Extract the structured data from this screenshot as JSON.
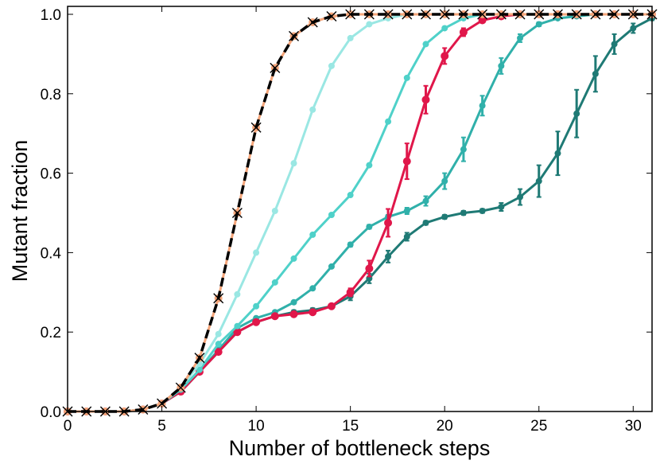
{
  "chart_data": {
    "type": "line",
    "title": "",
    "xlabel": "Number of bottleneck steps",
    "ylabel": "Mutant fraction",
    "xlim": [
      0,
      31
    ],
    "ylim": [
      0,
      1.02
    ],
    "xticks": [
      0,
      5,
      10,
      15,
      20,
      25,
      30
    ],
    "xtick_labels": [
      "0",
      "5",
      "10",
      "15",
      "20",
      "25",
      "30"
    ],
    "yticks": [
      0.0,
      0.2,
      0.4,
      0.6,
      0.8,
      1.0
    ],
    "ytick_labels": [
      "0.0",
      "0.2",
      "0.4",
      "0.6",
      "0.8",
      "1.0"
    ],
    "grid": false,
    "legend": "none",
    "series": [
      {
        "color": "#1f7a75",
        "style": "solid-line-with-dots-and-errorbars",
        "x": [
          0,
          1,
          2,
          3,
          4,
          5,
          6,
          7,
          8,
          9,
          10,
          11,
          12,
          13,
          14,
          15,
          16,
          17,
          18,
          19,
          20,
          21,
          22,
          23,
          24,
          25,
          26,
          27,
          28,
          29,
          30,
          31
        ],
        "y": [
          0,
          0,
          0,
          0,
          0.005,
          0.02,
          0.05,
          0.1,
          0.15,
          0.2,
          0.225,
          0.24,
          0.25,
          0.255,
          0.265,
          0.29,
          0.335,
          0.39,
          0.44,
          0.475,
          0.49,
          0.5,
          0.505,
          0.515,
          0.54,
          0.58,
          0.65,
          0.75,
          0.85,
          0.925,
          0.965,
          0.99
        ],
        "error": [
          0,
          0,
          0,
          0,
          0,
          0,
          0,
          0,
          0.005,
          0.005,
          0.005,
          0.005,
          0.005,
          0.005,
          0.005,
          0.01,
          0.012,
          0.015,
          0.01,
          0.005,
          0.005,
          0.005,
          0.005,
          0.01,
          0.02,
          0.04,
          0.055,
          0.06,
          0.045,
          0.025,
          0.012,
          0.005
        ]
      },
      {
        "color": "#30b0aa",
        "style": "solid-line-with-dots-and-errorbars",
        "x": [
          0,
          1,
          2,
          3,
          4,
          5,
          6,
          7,
          8,
          9,
          10,
          11,
          12,
          13,
          14,
          15,
          16,
          17,
          18,
          19,
          20,
          21,
          22,
          23,
          24,
          25,
          26,
          27,
          28,
          29,
          30,
          31
        ],
        "y": [
          0,
          0,
          0,
          0,
          0.005,
          0.02,
          0.05,
          0.1,
          0.155,
          0.21,
          0.235,
          0.25,
          0.275,
          0.31,
          0.365,
          0.42,
          0.465,
          0.49,
          0.505,
          0.53,
          0.58,
          0.66,
          0.77,
          0.87,
          0.94,
          0.975,
          0.99,
          0.995,
          1.0,
          1.0,
          1.0,
          1.0
        ],
        "error": [
          0,
          0,
          0,
          0,
          0,
          0,
          0,
          0,
          0,
          0,
          0,
          0,
          0,
          0,
          0,
          0.005,
          0.005,
          0.005,
          0.008,
          0.012,
          0.02,
          0.03,
          0.025,
          0.02,
          0.01,
          0.005,
          0,
          0,
          0,
          0,
          0,
          0
        ]
      },
      {
        "color": "#e0174a",
        "style": "solid-line-with-dots-and-errorbars",
        "x": [
          0,
          1,
          2,
          3,
          4,
          5,
          6,
          7,
          8,
          9,
          10,
          11,
          12,
          13,
          14,
          15,
          16,
          17,
          18,
          19,
          20,
          21,
          22,
          23,
          24,
          25,
          26,
          27,
          28,
          29,
          30,
          31
        ],
        "y": [
          0,
          0,
          0,
          0,
          0.005,
          0.02,
          0.05,
          0.1,
          0.15,
          0.2,
          0.225,
          0.24,
          0.245,
          0.25,
          0.265,
          0.3,
          0.36,
          0.475,
          0.63,
          0.785,
          0.895,
          0.955,
          0.985,
          0.995,
          1.0,
          1.0,
          1.0,
          1.0,
          1.0,
          1.0,
          1.0,
          1.0
        ],
        "error": [
          0,
          0,
          0,
          0,
          0,
          0,
          0,
          0,
          0,
          0,
          0,
          0,
          0,
          0,
          0,
          0.01,
          0.02,
          0.035,
          0.045,
          0.035,
          0.02,
          0.01,
          0.005,
          0,
          0,
          0,
          0,
          0,
          0,
          0,
          0,
          0
        ]
      },
      {
        "color": "#4fd1c9",
        "style": "solid-line-with-dots",
        "x": [
          0,
          1,
          2,
          3,
          4,
          5,
          6,
          7,
          8,
          9,
          10,
          11,
          12,
          13,
          14,
          15,
          16,
          17,
          18,
          19,
          20,
          21,
          22,
          23,
          24,
          25,
          26,
          27,
          28,
          29,
          30,
          31
        ],
        "y": [
          0,
          0,
          0,
          0,
          0.005,
          0.02,
          0.055,
          0.105,
          0.17,
          0.215,
          0.265,
          0.325,
          0.385,
          0.445,
          0.495,
          0.545,
          0.62,
          0.73,
          0.84,
          0.925,
          0.965,
          0.99,
          1.0,
          1.0,
          1.0,
          1.0,
          1.0,
          1.0,
          1.0,
          1.0,
          1.0,
          1.0
        ]
      },
      {
        "color": "#9ae7e3",
        "style": "solid-line-with-dots",
        "x": [
          0,
          1,
          2,
          3,
          4,
          5,
          6,
          7,
          8,
          9,
          10,
          11,
          12,
          13,
          14,
          15,
          16,
          17,
          18,
          19,
          20,
          21,
          22,
          23,
          24,
          25,
          26,
          27,
          28,
          29,
          30,
          31
        ],
        "y": [
          0,
          0,
          0,
          0,
          0.005,
          0.02,
          0.06,
          0.12,
          0.195,
          0.295,
          0.4,
          0.505,
          0.625,
          0.76,
          0.87,
          0.94,
          0.975,
          0.99,
          1.0,
          1.0,
          1.0,
          1.0,
          1.0,
          1.0,
          1.0,
          1.0,
          1.0,
          1.0,
          1.0,
          1.0,
          1.0,
          1.0
        ]
      },
      {
        "color": "#f4a57a",
        "style": "solid-line-with-dots",
        "x": [
          0,
          1,
          2,
          3,
          4,
          5,
          6,
          7,
          8,
          9,
          10,
          11,
          12,
          13,
          14,
          15,
          16,
          17,
          18,
          19,
          20,
          21,
          22,
          23,
          24,
          25,
          26,
          27,
          28,
          29,
          30,
          31
        ],
        "y": [
          0,
          0,
          0,
          0,
          0.005,
          0.02,
          0.06,
          0.135,
          0.285,
          0.5,
          0.715,
          0.865,
          0.945,
          0.98,
          0.995,
          1.0,
          1.0,
          1.0,
          1.0,
          1.0,
          1.0,
          1.0,
          1.0,
          1.0,
          1.0,
          1.0,
          1.0,
          1.0,
          1.0,
          1.0,
          1.0,
          1.0
        ]
      },
      {
        "color": "#000000",
        "style": "dashed-line-with-x-markers",
        "x": [
          0,
          1,
          2,
          3,
          4,
          5,
          6,
          7,
          8,
          9,
          10,
          11,
          12,
          13,
          14,
          15,
          16,
          17,
          18,
          19,
          20,
          21,
          22,
          23,
          24,
          25,
          26,
          27,
          28,
          29,
          30,
          31
        ],
        "y": [
          0,
          0,
          0,
          0,
          0.005,
          0.02,
          0.06,
          0.135,
          0.285,
          0.5,
          0.715,
          0.865,
          0.945,
          0.98,
          0.995,
          1.0,
          1.0,
          1.0,
          1.0,
          1.0,
          1.0,
          1.0,
          1.0,
          1.0,
          1.0,
          1.0,
          1.0,
          1.0,
          1.0,
          1.0,
          1.0,
          1.0
        ]
      }
    ]
  }
}
